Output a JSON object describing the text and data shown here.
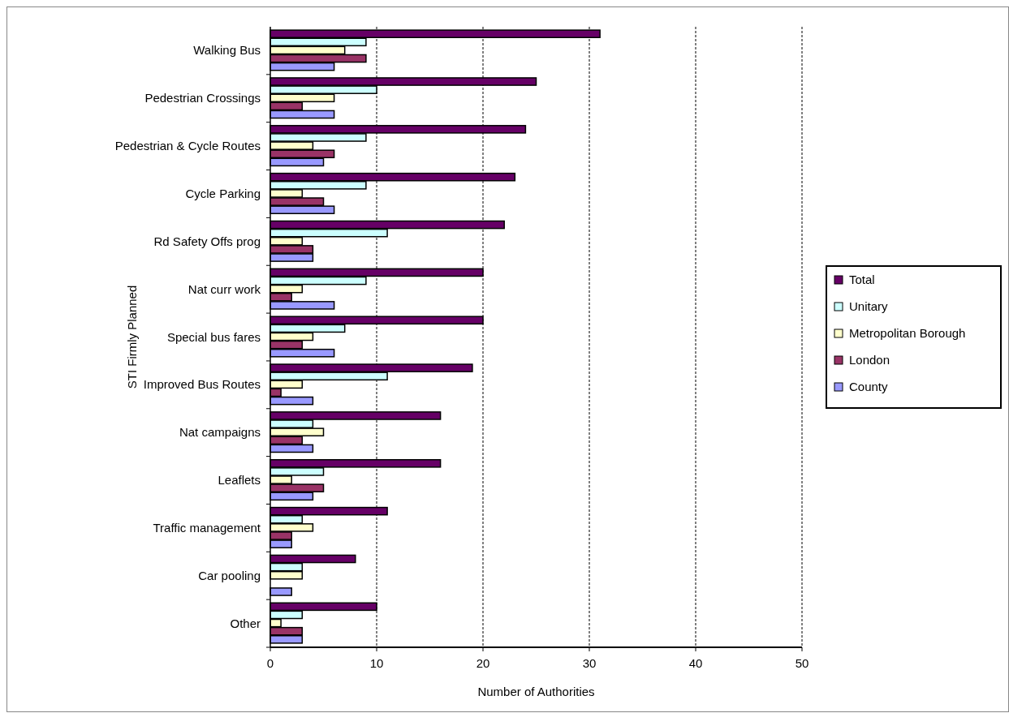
{
  "chart_data": {
    "type": "bar",
    "orientation": "horizontal",
    "xlabel": "Number of Authorities",
    "ylabel": "STI Firmly Planned",
    "categories": [
      "Walking Bus",
      "Pedestrian Crossings",
      "Pedestrian & Cycle Routes",
      "Cycle Parking",
      "Rd Safety Offs prog",
      "Nat curr work",
      "Special bus fares",
      "Improved Bus Routes",
      "Nat campaigns",
      "Leaflets",
      "Traffic management",
      "Car pooling",
      "Other"
    ],
    "series": [
      {
        "name": "Total",
        "color": "#660066",
        "values": [
          31,
          25,
          24,
          23,
          22,
          20,
          20,
          19,
          16,
          16,
          11,
          8,
          10
        ]
      },
      {
        "name": "Unitary",
        "color": "#ccffff",
        "values": [
          9,
          10,
          9,
          9,
          11,
          9,
          7,
          11,
          4,
          5,
          3,
          3,
          3
        ]
      },
      {
        "name": "Metropolitan Borough",
        "color": "#ffffcc",
        "values": [
          7,
          6,
          4,
          3,
          3,
          3,
          4,
          3,
          5,
          2,
          4,
          3,
          1
        ]
      },
      {
        "name": "London",
        "color": "#993366",
        "values": [
          9,
          3,
          6,
          5,
          4,
          2,
          3,
          1,
          3,
          5,
          2,
          0,
          3
        ]
      },
      {
        "name": "County",
        "color": "#9999ff",
        "values": [
          6,
          6,
          5,
          6,
          4,
          6,
          6,
          4,
          4,
          4,
          2,
          2,
          3
        ]
      }
    ],
    "xlim": [
      0,
      50
    ],
    "xticks": [
      0,
      10,
      20,
      30,
      40,
      50
    ],
    "grid": "x",
    "legend": "right"
  }
}
